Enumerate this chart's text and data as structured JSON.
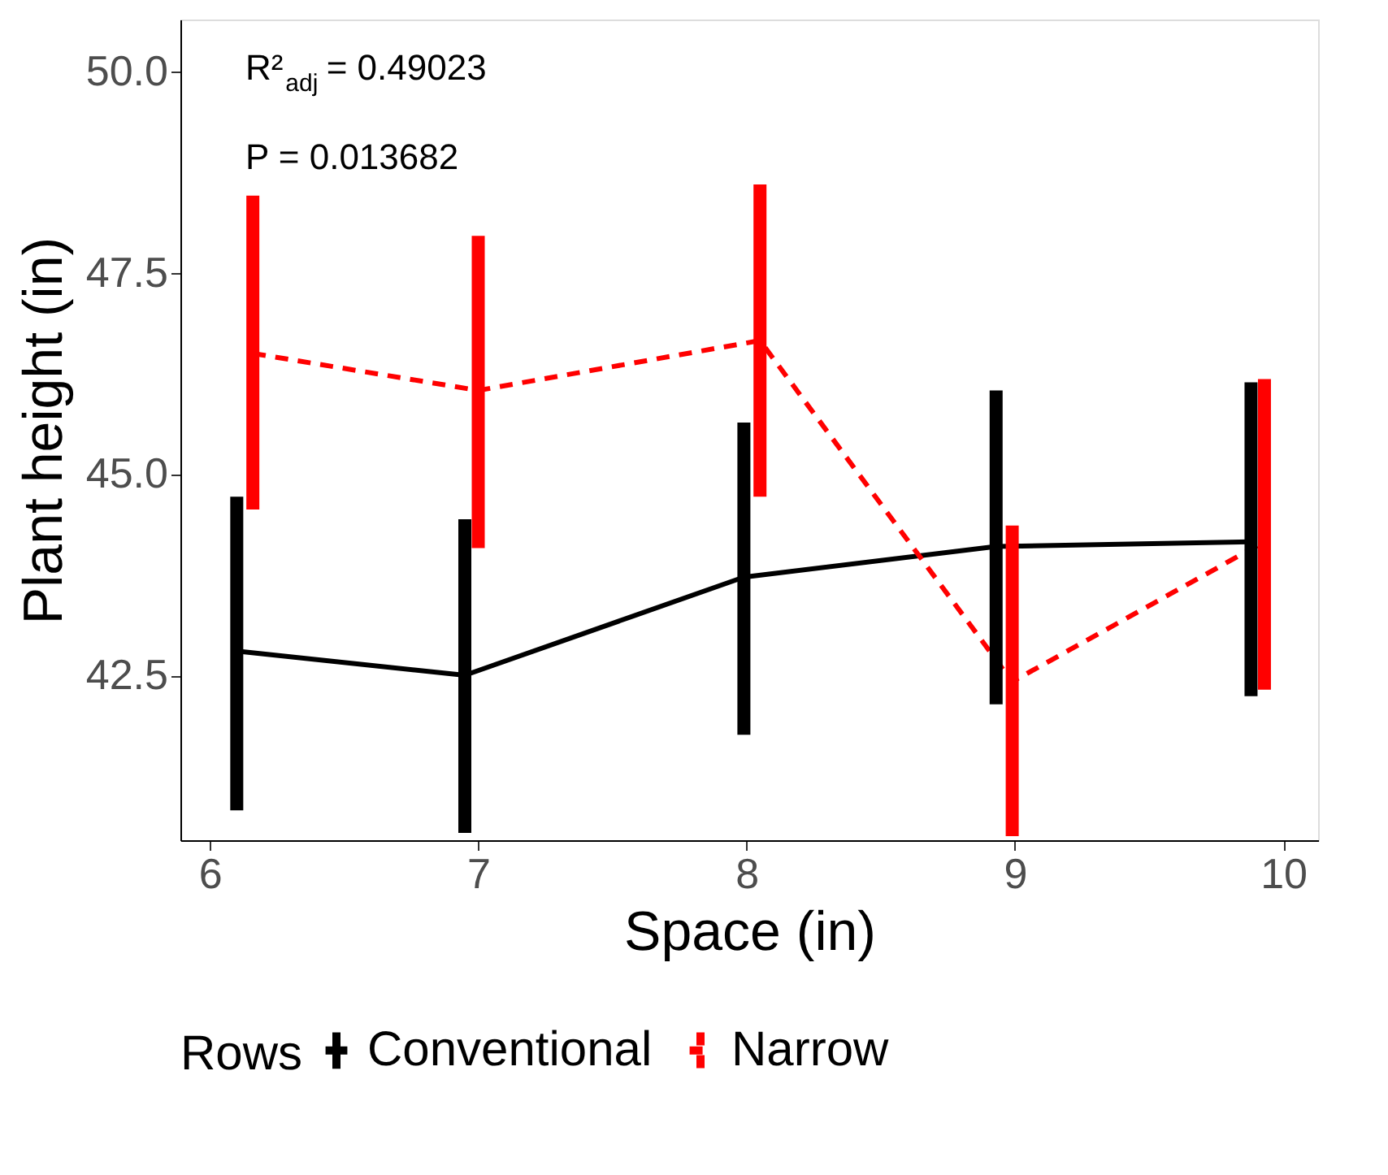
{
  "chart_data": {
    "type": "line",
    "xlabel": "Space (in)",
    "ylabel": "Plant height (in)",
    "legend_title": "Rows",
    "annotations": [
      "R²$_{adj}$ = 0.49023",
      "P = 0.013682"
    ],
    "xlim": [
      5.89,
      10.13
    ],
    "xticks": [
      6,
      7,
      8,
      9,
      10
    ],
    "ylim": [
      40.45,
      50.65
    ],
    "yticks": [
      {
        "value": 42.5,
        "label": "42.5"
      },
      {
        "value": 45,
        "label": "45.0"
      },
      {
        "value": 47.5,
        "label": "47.5"
      },
      {
        "value": 50,
        "label": "50.0"
      }
    ],
    "grid": false,
    "legend": "bottom",
    "marker": "none",
    "series": [
      {
        "name": "Conventional",
        "color": "#000000",
        "line_style": "solid",
        "x": [
          6.1,
          6.95,
          7.99,
          8.93,
          9.88
        ],
        "values": [
          42.8,
          42.5,
          43.72,
          44.1,
          44.16
        ],
        "errors": [
          [
            40.82,
            44.72
          ],
          [
            40.54,
            44.44
          ],
          [
            41.76,
            45.64
          ],
          [
            42.14,
            46.04
          ],
          [
            42.24,
            46.14
          ]
        ]
      },
      {
        "name": "Narrow",
        "color": "#ff0000",
        "line_style": "dashed",
        "x": [
          6.16,
          7.0,
          8.05,
          8.99,
          9.93
        ],
        "values": [
          46.5,
          46.04,
          46.66,
          42.42,
          44.16
        ],
        "errors": [
          [
            44.56,
            48.46
          ],
          [
            44.08,
            47.96
          ],
          [
            44.72,
            48.6
          ],
          [
            40.5,
            44.36
          ],
          [
            42.32,
            46.18
          ]
        ]
      }
    ]
  }
}
